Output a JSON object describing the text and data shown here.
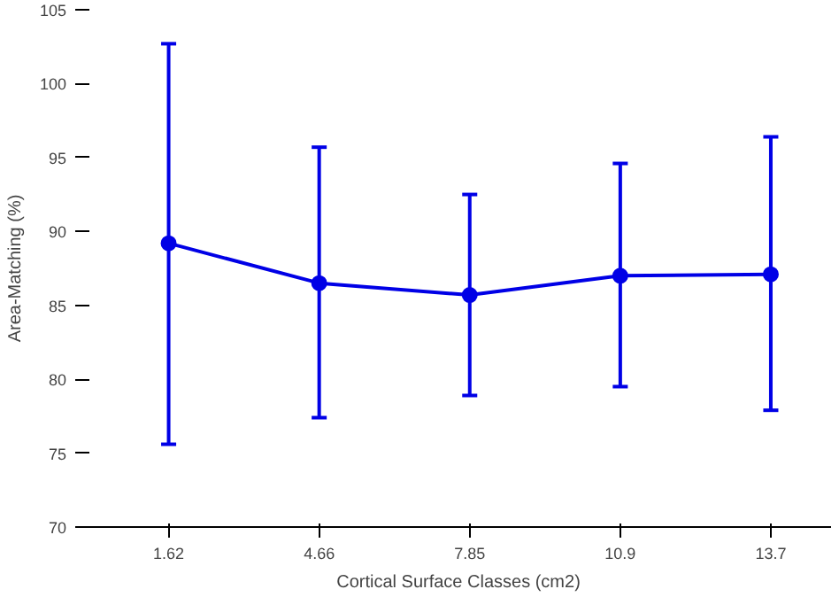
{
  "chart_data": {
    "type": "line",
    "xlabel": "Cortical Surface Classes (cm2)",
    "ylabel": "Area-Matching (%)",
    "categories": [
      "1.62",
      "4.66",
      "7.85",
      "10.9",
      "13.7"
    ],
    "series": [
      {
        "color": "#0000e6",
        "values": [
          89.2,
          86.5,
          85.7,
          87.0,
          87.1
        ],
        "errors": [
          [
            75.6,
            102.7
          ],
          [
            77.4,
            95.7
          ],
          [
            78.9,
            92.5
          ],
          [
            79.5,
            94.6
          ],
          [
            77.9,
            96.4
          ]
        ]
      }
    ],
    "ylim": [
      70,
      105
    ],
    "yticks": [
      70,
      75,
      80,
      85,
      90,
      95,
      100,
      105
    ],
    "marker": "circle",
    "line_style": "solid",
    "grid": false
  }
}
